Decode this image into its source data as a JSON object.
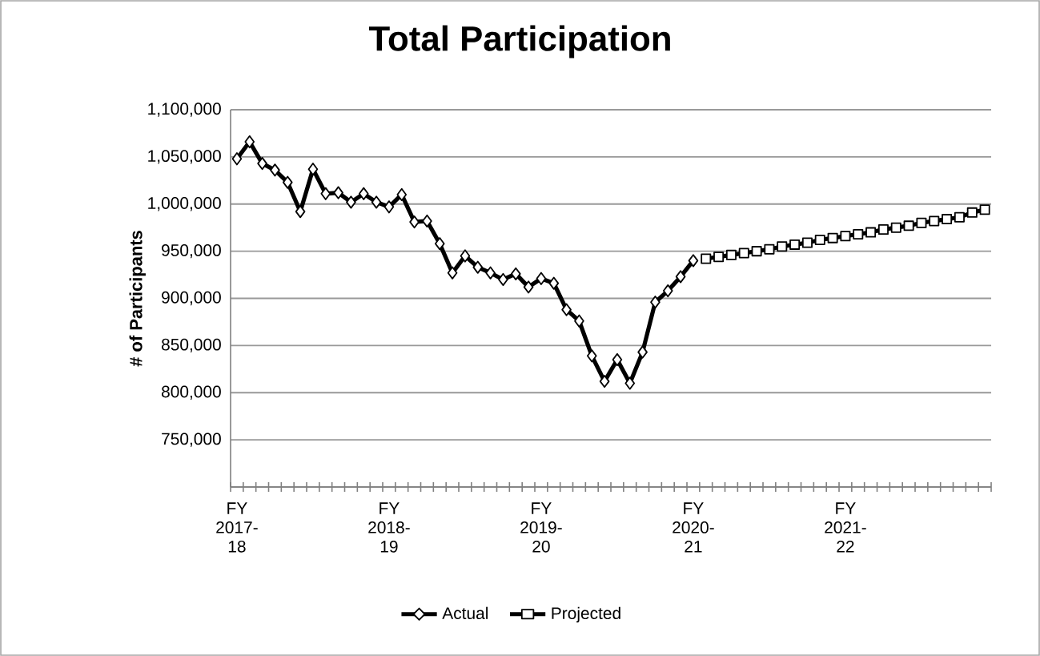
{
  "chart_data": {
    "type": "line",
    "title": "Total Participation",
    "ylabel": "# of Participants",
    "categories": [
      "FY 2017-18",
      null,
      null,
      null,
      null,
      null,
      null,
      null,
      null,
      null,
      null,
      null,
      "FY 2018-19",
      null,
      null,
      null,
      null,
      null,
      null,
      null,
      null,
      null,
      null,
      null,
      "FY 2019-20",
      null,
      null,
      null,
      null,
      null,
      null,
      null,
      null,
      null,
      null,
      null,
      "FY 2020-21",
      null,
      null,
      null,
      null,
      null,
      null,
      null,
      null,
      null,
      null,
      null,
      "FY 2021-22",
      null,
      null,
      null,
      null,
      null,
      null,
      null,
      null,
      null,
      null,
      null
    ],
    "series": [
      {
        "name": "Actual",
        "color": "#000000",
        "marker": "diamond",
        "values": [
          1048000,
          1066000,
          1043000,
          1036000,
          1023000,
          992000,
          1037000,
          1011000,
          1012000,
          1002000,
          1011000,
          1002000,
          997000,
          1010000,
          981000,
          982000,
          958000,
          927000,
          945000,
          933000,
          927000,
          920000,
          926000,
          912000,
          921000,
          916000,
          888000,
          876000,
          839000,
          812000,
          835000,
          810000,
          843000,
          896000,
          908000,
          923000,
          940000,
          null,
          null,
          null,
          null,
          null,
          null,
          null,
          null,
          null,
          null,
          null,
          null,
          null,
          null,
          null,
          null,
          null,
          null,
          null,
          null,
          null,
          null,
          null
        ]
      },
      {
        "name": "Projected",
        "color": "#000000",
        "marker": "square",
        "values": [
          null,
          null,
          null,
          null,
          null,
          null,
          null,
          null,
          null,
          null,
          null,
          null,
          null,
          null,
          null,
          null,
          null,
          null,
          null,
          null,
          null,
          null,
          null,
          null,
          null,
          null,
          null,
          null,
          null,
          null,
          null,
          null,
          null,
          null,
          null,
          null,
          null,
          942000,
          944000,
          946000,
          948000,
          950000,
          952000,
          955000,
          957000,
          959000,
          962000,
          964000,
          966000,
          968000,
          970000,
          973000,
          975000,
          977000,
          980000,
          982000,
          984000,
          986000,
          991000,
          994000
        ]
      }
    ],
    "ylim": [
      700000,
      1100000
    ],
    "yticks": [
      {
        "value": 700000,
        "label": null
      },
      {
        "value": 750000,
        "label": "750,000"
      },
      {
        "value": 800000,
        "label": "800,000"
      },
      {
        "value": 850000,
        "label": "850,000"
      },
      {
        "value": 900000,
        "label": "900,000"
      },
      {
        "value": 950000,
        "label": "950,000"
      },
      {
        "value": 1000000,
        "label": "1,000,000"
      },
      {
        "value": 1050000,
        "label": "1,050,000"
      },
      {
        "value": 1100000,
        "label": "1,100,000"
      }
    ],
    "grid": "y",
    "legend": "bottom",
    "line_style": "solid"
  }
}
